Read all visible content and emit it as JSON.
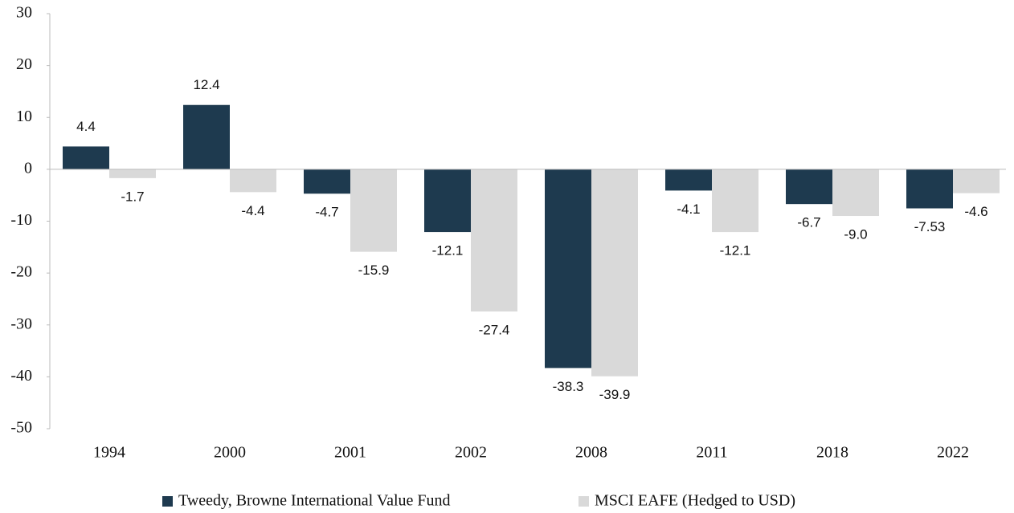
{
  "chart_data": {
    "type": "bar",
    "categories": [
      "1994",
      "2000",
      "2001",
      "2002",
      "2008",
      "2011",
      "2018",
      "2022"
    ],
    "series": [
      {
        "name": "Tweedy, Browne International Value Fund",
        "color": "#1e3a4f",
        "values": [
          4.4,
          12.4,
          -4.7,
          -12.1,
          -38.3,
          -4.1,
          -6.7,
          -7.53
        ],
        "value_labels": [
          "4.4",
          "12.4",
          "-4.7",
          "-12.1",
          "-38.3",
          "-4.1",
          "-6.7",
          "-7.53"
        ]
      },
      {
        "name": "MSCI EAFE (Hedged to USD)",
        "color": "#d9d9d9",
        "values": [
          -1.7,
          -4.4,
          -15.9,
          -27.4,
          -39.9,
          -12.1,
          -9.0,
          -4.6
        ],
        "value_labels": [
          "-1.7",
          "-4.4",
          "-15.9",
          "-27.4",
          "-39.9",
          "-12.1",
          "-9.0",
          "-4.6"
        ]
      }
    ],
    "ylim": [
      -50,
      30
    ],
    "yticks": [
      -50,
      -40,
      -30,
      -20,
      -10,
      0,
      10,
      20,
      30
    ],
    "grid": false,
    "legend": "bottom"
  }
}
